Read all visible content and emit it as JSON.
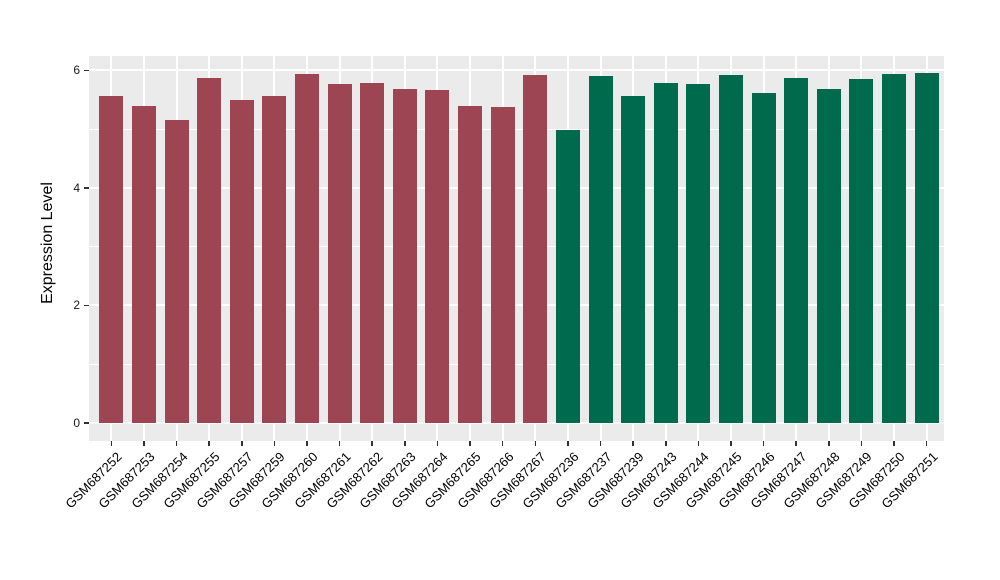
{
  "chart_data": {
    "type": "bar",
    "title": "",
    "xlabel": "",
    "ylabel": "Expression Level",
    "ylim": [
      0,
      6.24
    ],
    "yticks": [
      0,
      2,
      4,
      6
    ],
    "yticks_minor": [
      1,
      3,
      5
    ],
    "grid": "on",
    "legend": "none",
    "categories": [
      "GSM687252",
      "GSM687253",
      "GSM687254",
      "GSM687255",
      "GSM687257",
      "GSM687259",
      "GSM687260",
      "GSM687261",
      "GSM687262",
      "GSM687263",
      "GSM687264",
      "GSM687265",
      "GSM687266",
      "GSM687267",
      "GSM687236",
      "GSM687237",
      "GSM687239",
      "GSM687243",
      "GSM687244",
      "GSM687245",
      "GSM687246",
      "GSM687247",
      "GSM687248",
      "GSM687249",
      "GSM687250",
      "GSM687251"
    ],
    "values": [
      5.56,
      5.4,
      5.16,
      5.87,
      5.49,
      5.56,
      5.94,
      5.77,
      5.79,
      5.68,
      5.66,
      5.4,
      5.38,
      5.92,
      4.99,
      5.9,
      5.57,
      5.79,
      5.77,
      5.92,
      5.62,
      5.87,
      5.69,
      5.86,
      5.93,
      5.96
    ],
    "colors": [
      "#9D4553",
      "#9D4553",
      "#9D4553",
      "#9D4553",
      "#9D4553",
      "#9D4553",
      "#9D4553",
      "#9D4553",
      "#9D4553",
      "#9D4553",
      "#9D4553",
      "#9D4553",
      "#9D4553",
      "#9D4553",
      "#006B4C",
      "#006B4C",
      "#006B4C",
      "#006B4C",
      "#006B4C",
      "#006B4C",
      "#006B4C",
      "#006B4C",
      "#006B4C",
      "#006B4C",
      "#006B4C",
      "#006B4C"
    ],
    "group_colors": {
      "left_group": "#9D4553",
      "right_group": "#006B4C"
    }
  },
  "style": {
    "panel_background": "#EBEBEB",
    "grid_color": "#FFFFFF",
    "tick_color": "#333333",
    "text_color": "#000000"
  }
}
